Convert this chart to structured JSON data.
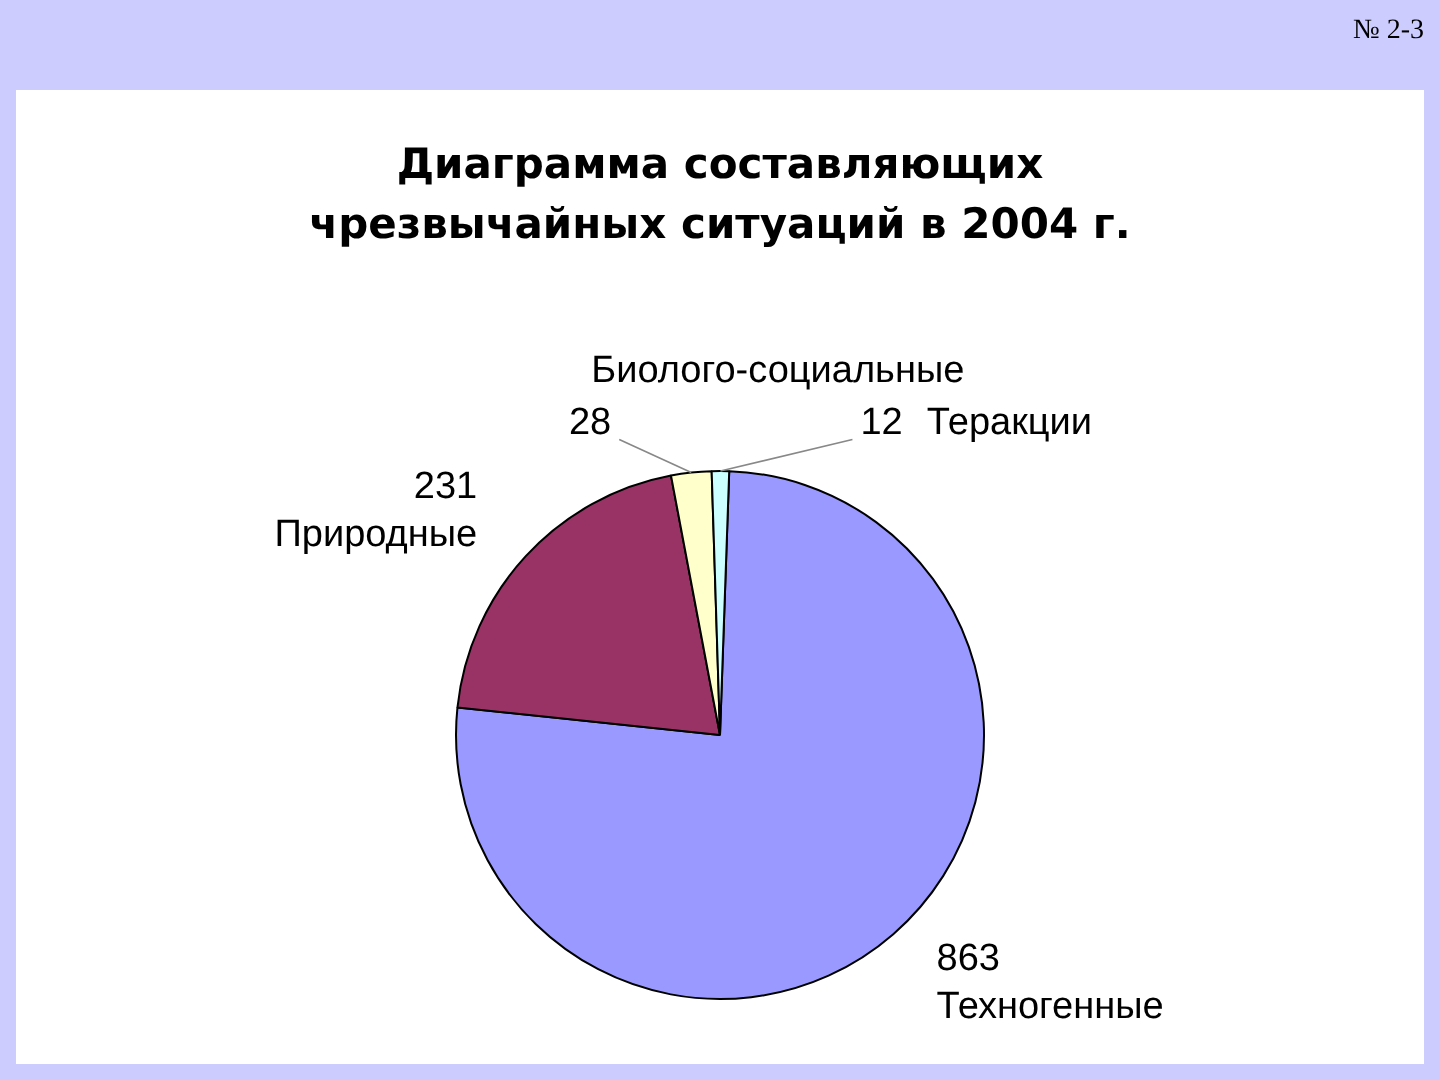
{
  "chart_data": {
    "type": "pie",
    "title": "Диаграмма составляющих чрезвычайных ситуаций в 2004 г.",
    "categories": [
      "Техногенные",
      "Природные",
      "Биолого-социальные",
      "Теракции"
    ],
    "values": [
      863,
      231,
      28,
      12
    ],
    "colors": [
      "#9999ff",
      "#993366",
      "#ffffcc",
      "#ccffff"
    ],
    "data_labels": true,
    "legend": false,
    "annotations": [
      "№ 2-3"
    ]
  }
}
